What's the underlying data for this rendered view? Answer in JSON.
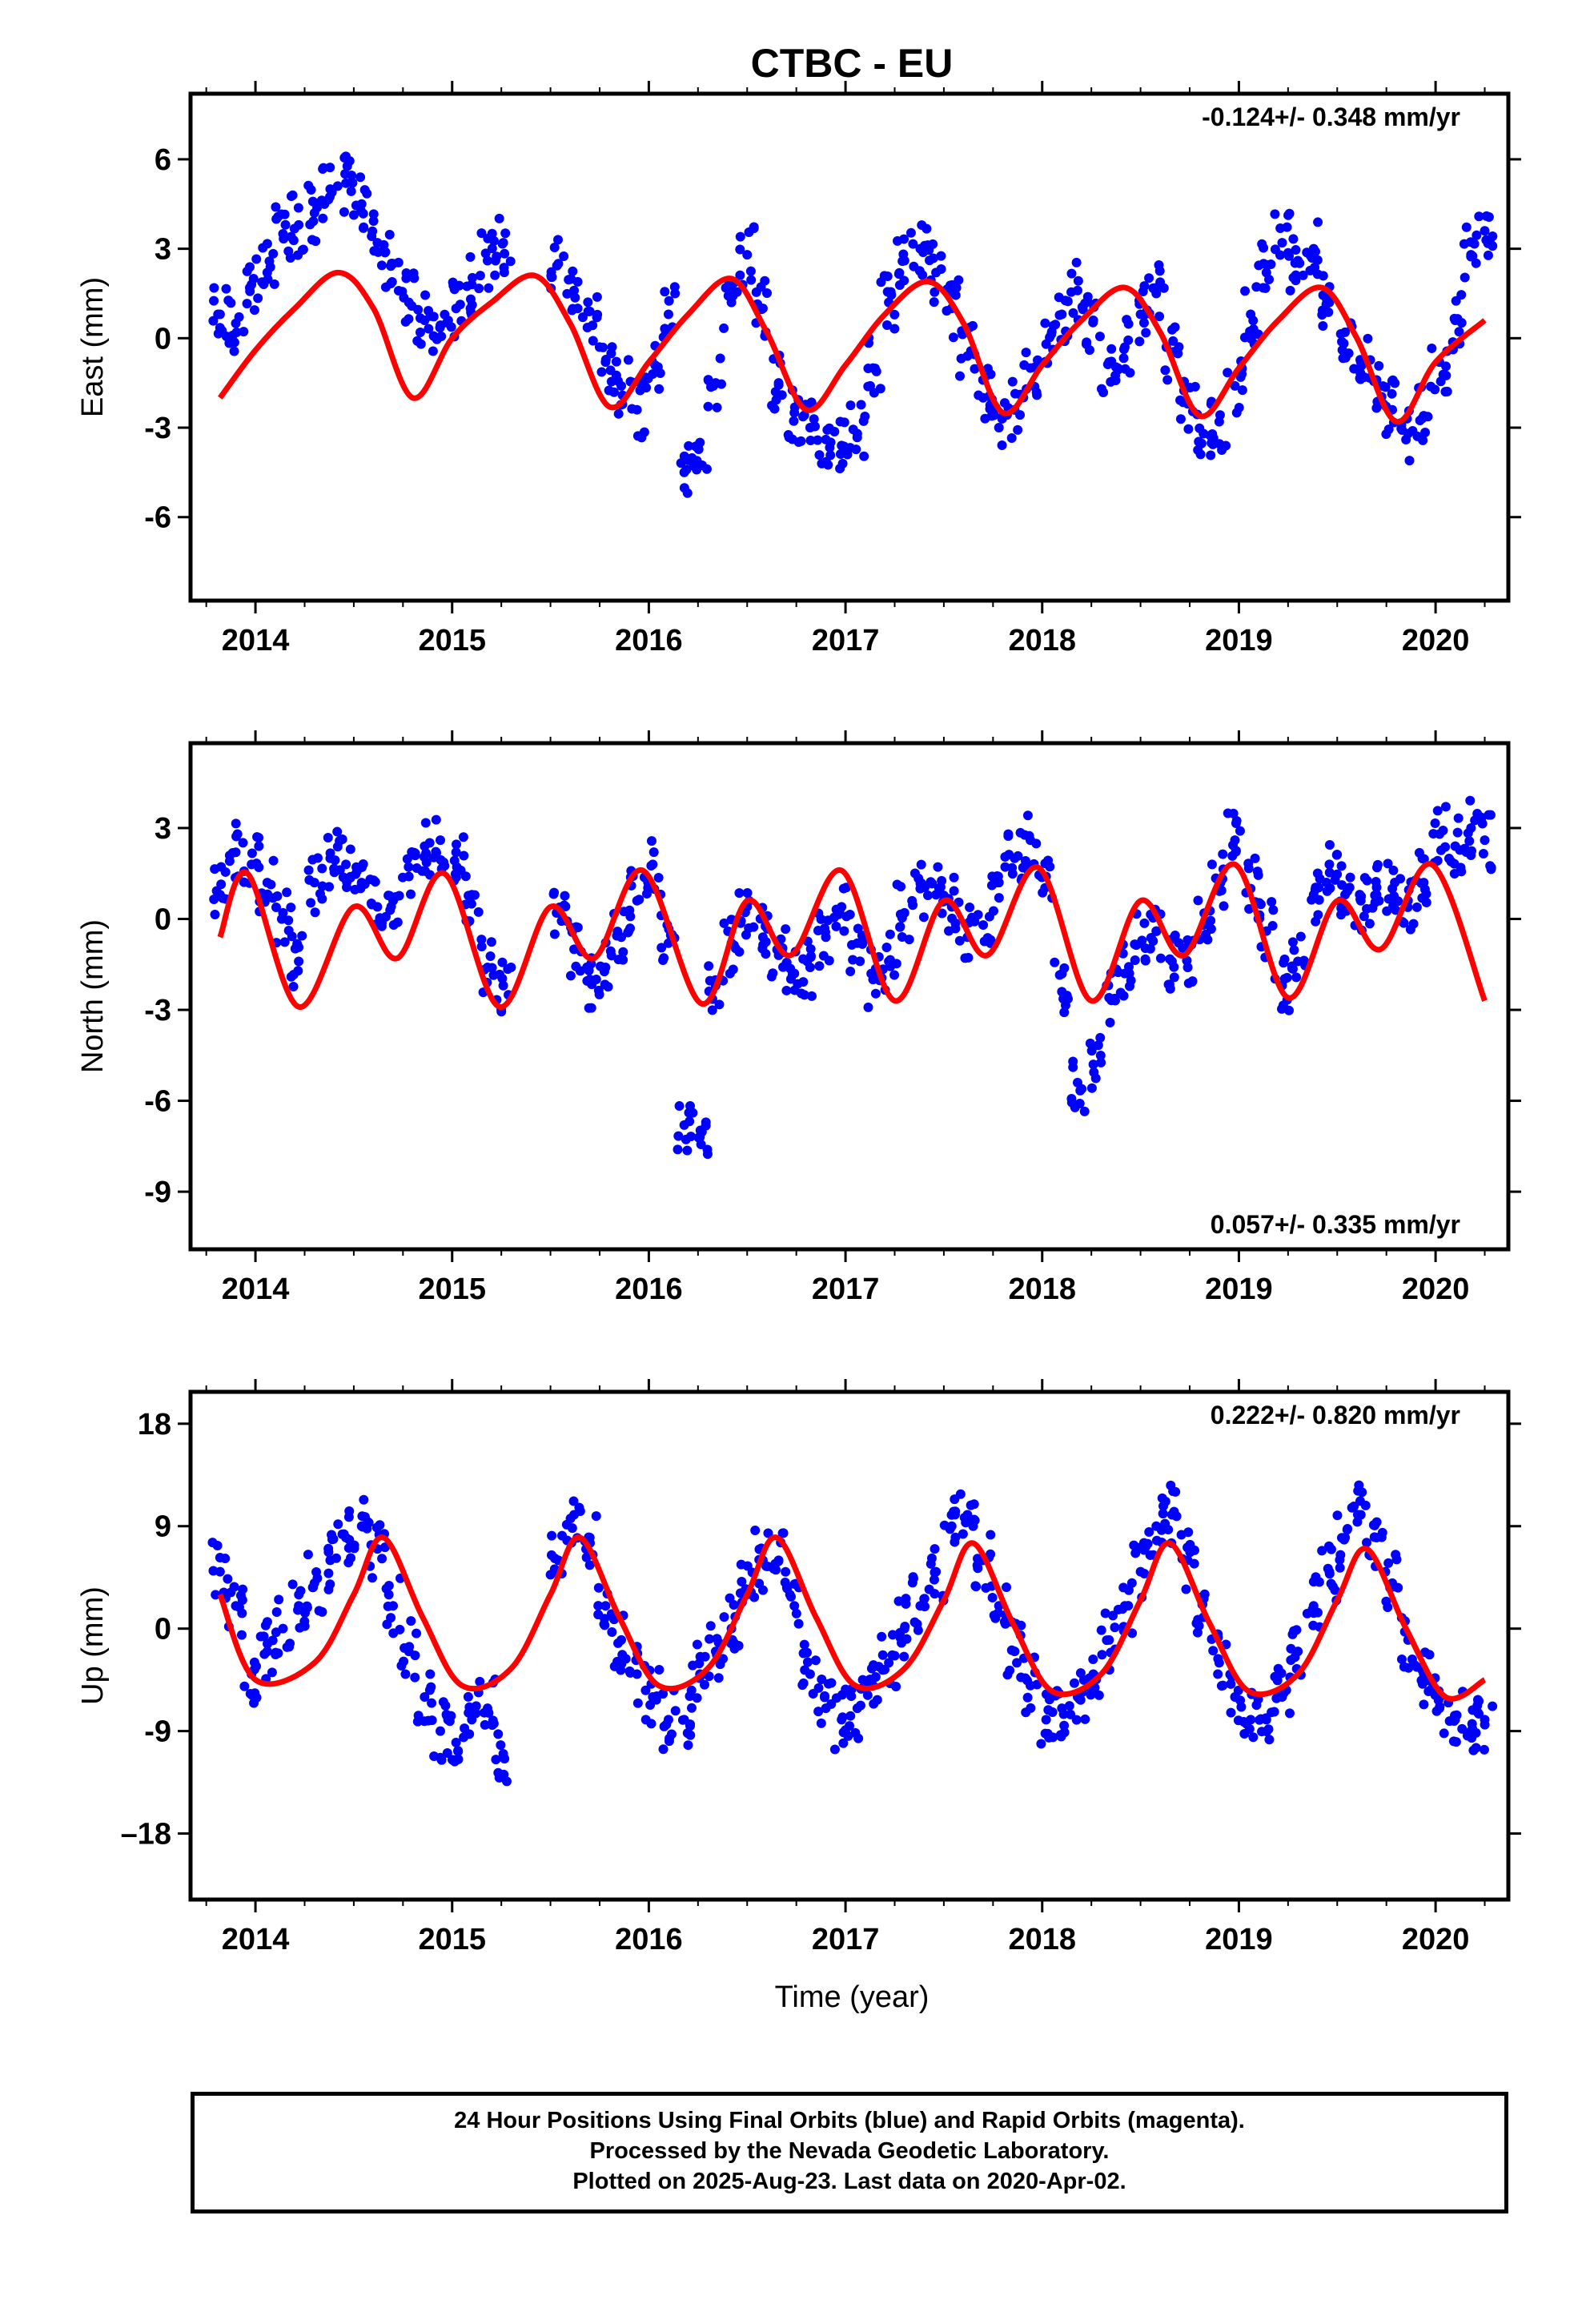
{
  "title": "CTBC - EU",
  "xlabel": "Time (year)",
  "colors": {
    "data": "#0000ff",
    "fit": "#ff0000",
    "frame": "#000000"
  },
  "caption": {
    "line1": "24 Hour Positions Using Final Orbits (blue) and Rapid Orbits (magenta).",
    "line2": "Processed by the Nevada Geodetic Laboratory.",
    "line3": "Plotted on 2025-Aug-23. Last data on 2020-Apr-02."
  },
  "chart_data": [
    {
      "type": "scatter",
      "title": "CTBC - EU",
      "ylabel": "East (mm)",
      "xlabel": "",
      "xlim": [
        2013.67,
        2020.37
      ],
      "ylim": [
        -8.8,
        8.2
      ],
      "xticks": [
        "2014",
        "2015",
        "2016",
        "2017",
        "2018",
        "2019",
        "2020"
      ],
      "yticks": [
        6,
        3,
        0,
        -3,
        -6
      ],
      "rate_label": "-0.124+/- 0.348 mm/yr",
      "rate_position": "top-right",
      "series": [
        {
          "kind": "points",
          "x": [
            2013.82,
            2013.9,
            2013.98,
            2014.06,
            2014.14,
            2014.22,
            2014.3,
            2014.38,
            2014.46,
            2014.54,
            2014.62,
            2014.7,
            2014.78,
            2014.86,
            2014.94,
            2015.02,
            2015.1,
            2015.18,
            2015.26,
            2015.54,
            2015.62,
            2015.7,
            2015.78,
            2015.86,
            2015.94,
            2016.02,
            2016.1,
            2016.18,
            2016.26,
            2016.34,
            2016.42,
            2016.5,
            2016.58,
            2016.66,
            2016.74,
            2016.82,
            2016.9,
            2016.98,
            2017.06,
            2017.14,
            2017.22,
            2017.3,
            2017.38,
            2017.46,
            2017.54,
            2017.62,
            2017.7,
            2017.78,
            2017.86,
            2017.94,
            2018.02,
            2018.1,
            2018.18,
            2018.26,
            2018.34,
            2018.42,
            2018.5,
            2018.58,
            2018.66,
            2018.74,
            2018.82,
            2018.9,
            2018.98,
            2019.06,
            2019.14,
            2019.22,
            2019.3,
            2019.38,
            2019.46,
            2019.54,
            2019.62,
            2019.7,
            2019.78,
            2019.86,
            2019.94,
            2020.02,
            2020.1,
            2020.18,
            2020.25
          ],
          "y": [
            0.8,
            0.5,
            1.8,
            2.2,
            3.5,
            3.8,
            4.2,
            5.0,
            5.2,
            4.5,
            3.2,
            2.5,
            1.2,
            0.6,
            0.4,
            1.0,
            1.8,
            2.6,
            3.2,
            2.5,
            1.6,
            0.9,
            -0.8,
            -1.6,
            -2.4,
            -1.2,
            0.8,
            -4.5,
            -3.5,
            -1.5,
            1.2,
            2.8,
            1.0,
            -1.5,
            -2.5,
            -3.0,
            -3.4,
            -3.6,
            -3.2,
            -1.0,
            1.2,
            2.6,
            3.0,
            2.2,
            1.0,
            -0.6,
            -2.0,
            -3.0,
            -2.4,
            -1.0,
            -0.2,
            0.8,
            1.6,
            0.6,
            -0.8,
            -0.3,
            0.8,
            1.5,
            -0.5,
            -2.2,
            -3.2,
            -2.8,
            -1.6,
            0.8,
            2.2,
            3.2,
            2.6,
            3.0,
            1.2,
            0.2,
            -0.8,
            -1.4,
            -2.4,
            -3.2,
            -2.6,
            -0.8,
            0.6,
            2.8,
            3.6
          ]
        },
        {
          "kind": "fit",
          "x": [
            2013.82,
            2014.0,
            2014.2,
            2014.42,
            2014.6,
            2014.8,
            2015.0,
            2015.2,
            2015.42,
            2015.6,
            2015.8,
            2016.0,
            2016.2,
            2016.42,
            2016.6,
            2016.8,
            2017.0,
            2017.2,
            2017.42,
            2017.6,
            2017.8,
            2018.0,
            2018.2,
            2018.42,
            2018.6,
            2018.8,
            2019.0,
            2019.2,
            2019.42,
            2019.6,
            2019.8,
            2020.0,
            2020.25
          ],
          "y": [
            -2.0,
            -0.4,
            1.0,
            2.2,
            1.0,
            -2.0,
            0.0,
            1.2,
            2.1,
            0.5,
            -2.3,
            -0.8,
            0.8,
            2.0,
            0.2,
            -2.4,
            -0.9,
            0.8,
            1.9,
            0.5,
            -2.5,
            -0.9,
            0.6,
            1.7,
            0.2,
            -2.6,
            -1.0,
            0.6,
            1.7,
            0.0,
            -2.8,
            -0.8,
            0.6
          ]
        }
      ]
    },
    {
      "type": "scatter",
      "ylabel": "North (mm)",
      "xlabel": "",
      "xlim": [
        2013.67,
        2020.37
      ],
      "ylim": [
        -10.9,
        5.8
      ],
      "xticks": [
        "2014",
        "2015",
        "2016",
        "2017",
        "2018",
        "2019",
        "2020"
      ],
      "yticks": [
        3,
        0,
        -3,
        -6,
        -9
      ],
      "rate_label": "0.057+/- 0.335 mm/yr",
      "rate_position": "bottom-right",
      "series": [
        {
          "kind": "points",
          "x": [
            2013.82,
            2013.9,
            2013.98,
            2014.06,
            2014.14,
            2014.22,
            2014.3,
            2014.38,
            2014.46,
            2014.54,
            2014.62,
            2014.7,
            2014.78,
            2014.86,
            2014.94,
            2015.02,
            2015.1,
            2015.18,
            2015.26,
            2015.54,
            2015.62,
            2015.7,
            2015.78,
            2015.86,
            2015.94,
            2016.02,
            2016.1,
            2016.18,
            2016.26,
            2016.34,
            2016.42,
            2016.5,
            2016.58,
            2016.66,
            2016.74,
            2016.82,
            2016.9,
            2016.98,
            2017.06,
            2017.14,
            2017.22,
            2017.3,
            2017.38,
            2017.46,
            2017.54,
            2017.62,
            2017.7,
            2017.78,
            2017.86,
            2017.94,
            2018.02,
            2018.1,
            2018.18,
            2018.26,
            2018.34,
            2018.42,
            2018.5,
            2018.58,
            2018.66,
            2018.74,
            2018.82,
            2018.9,
            2018.98,
            2019.06,
            2019.14,
            2019.22,
            2019.3,
            2019.38,
            2019.46,
            2019.54,
            2019.62,
            2019.7,
            2019.78,
            2019.86,
            2019.94,
            2020.02,
            2020.1,
            2020.18,
            2020.25
          ],
          "y": [
            0.8,
            2.2,
            1.8,
            1.2,
            0.2,
            -1.4,
            1.2,
            2.0,
            1.8,
            1.2,
            0.4,
            0.6,
            1.4,
            2.4,
            2.6,
            2.2,
            0.8,
            -1.6,
            -2.2,
            0.2,
            -1.0,
            -2.0,
            -1.6,
            -0.6,
            0.6,
            1.8,
            -0.8,
            -6.8,
            -7.2,
            -2.2,
            -0.8,
            0.4,
            -0.6,
            -1.2,
            -1.8,
            -1.6,
            -0.6,
            0.4,
            -0.8,
            -2.0,
            -1.4,
            0.2,
            1.0,
            0.8,
            0.4,
            -0.6,
            -0.2,
            1.2,
            2.0,
            2.6,
            1.4,
            -2.4,
            -5.4,
            -4.8,
            -2.6,
            -1.8,
            -0.8,
            -0.4,
            -1.4,
            -1.6,
            -0.2,
            1.2,
            2.6,
            1.0,
            -0.4,
            -2.2,
            -1.4,
            0.8,
            1.8,
            0.8,
            0.6,
            0.8,
            1.0,
            0.6,
            1.2,
            2.8,
            2.4,
            3.0,
            2.6
          ]
        },
        {
          "kind": "fit",
          "x": [
            2013.82,
            2013.96,
            2014.22,
            2014.5,
            2014.72,
            2014.96,
            2015.24,
            2015.5,
            2015.72,
            2015.97,
            2016.27,
            2016.5,
            2016.72,
            2016.98,
            2017.25,
            2017.5,
            2017.72,
            2017.98,
            2018.25,
            2018.5,
            2018.72,
            2018.98,
            2019.25,
            2019.5,
            2019.72,
            2019.98,
            2020.25
          ],
          "y": [
            -0.6,
            1.5,
            -2.9,
            0.4,
            -1.3,
            1.5,
            -2.9,
            0.4,
            -1.3,
            1.6,
            -2.8,
            0.6,
            -1.2,
            1.6,
            -2.7,
            0.6,
            -1.2,
            1.7,
            -2.7,
            0.6,
            -1.2,
            1.8,
            -2.6,
            0.6,
            -1.0,
            1.8,
            -2.7
          ]
        }
      ]
    },
    {
      "type": "scatter",
      "ylabel": "Up (mm)",
      "xlabel": "Time (year)",
      "xlim": [
        2013.67,
        2020.37
      ],
      "ylim": [
        -23.8,
        20.8
      ],
      "xticks": [
        "2014",
        "2015",
        "2016",
        "2017",
        "2018",
        "2019",
        "2020"
      ],
      "yticks": [
        18,
        9,
        0,
        -9,
        -18
      ],
      "rate_label": "0.222+/- 0.820 mm/yr",
      "rate_position": "top-right",
      "series": [
        {
          "kind": "points",
          "x": [
            2013.82,
            2013.9,
            2013.98,
            2014.06,
            2014.14,
            2014.22,
            2014.3,
            2014.38,
            2014.46,
            2014.54,
            2014.62,
            2014.7,
            2014.78,
            2014.86,
            2014.94,
            2015.02,
            2015.1,
            2015.18,
            2015.26,
            2015.54,
            2015.62,
            2015.7,
            2015.78,
            2015.86,
            2015.94,
            2016.02,
            2016.1,
            2016.18,
            2016.26,
            2016.34,
            2016.42,
            2016.5,
            2016.58,
            2016.66,
            2016.74,
            2016.82,
            2016.9,
            2016.98,
            2017.06,
            2017.14,
            2017.22,
            2017.3,
            2017.38,
            2017.46,
            2017.54,
            2017.62,
            2017.7,
            2017.78,
            2017.86,
            2017.94,
            2018.02,
            2018.1,
            2018.18,
            2018.26,
            2018.34,
            2018.42,
            2018.5,
            2018.58,
            2018.66,
            2018.74,
            2018.82,
            2018.9,
            2018.98,
            2019.06,
            2019.14,
            2019.22,
            2019.3,
            2019.38,
            2019.46,
            2019.54,
            2019.62,
            2019.7,
            2019.78,
            2019.86,
            2019.94,
            2020.02,
            2020.1,
            2020.18,
            2020.25
          ],
          "y": [
            5.0,
            2.0,
            -4.0,
            -2.0,
            0.0,
            2.0,
            4.0,
            6.0,
            8.0,
            9.0,
            7.0,
            2.0,
            -2.0,
            -6.0,
            -9.0,
            -10.0,
            -8.0,
            -7.0,
            -11.0,
            6.0,
            10.0,
            8.0,
            2.0,
            -1.0,
            -4.0,
            -6.0,
            -8.0,
            -8.0,
            -4.0,
            -2.0,
            0.0,
            3.0,
            6.0,
            6.0,
            2.0,
            -4.0,
            -7.0,
            -8.0,
            -7.0,
            -5.0,
            -3.0,
            0.0,
            2.0,
            5.0,
            9.0,
            10.0,
            6.0,
            2.0,
            -2.0,
            -5.0,
            -8.0,
            -7.0,
            -6.0,
            -4.0,
            -1.0,
            2.0,
            5.0,
            9.0,
            10.0,
            6.0,
            1.0,
            -3.0,
            -6.0,
            -8.0,
            -8.0,
            -6.0,
            -2.0,
            2.0,
            5.0,
            8.0,
            10.0,
            8.0,
            4.0,
            -1.0,
            -4.0,
            -7.0,
            -8.0,
            -9.0,
            -8.0
          ]
        },
        {
          "kind": "fit",
          "x": [
            2013.82,
            2014.0,
            2014.3,
            2014.5,
            2014.65,
            2014.85,
            2015.05,
            2015.3,
            2015.5,
            2015.65,
            2015.85,
            2016.05,
            2016.3,
            2016.5,
            2016.65,
            2016.85,
            2017.05,
            2017.3,
            2017.5,
            2017.65,
            2017.85,
            2018.05,
            2018.3,
            2018.5,
            2018.65,
            2018.85,
            2019.05,
            2019.3,
            2019.5,
            2019.65,
            2019.85,
            2020.05,
            2020.25
          ],
          "y": [
            3.0,
            -4.5,
            -3.0,
            3.0,
            8.0,
            1.0,
            -5.0,
            -3.5,
            3.0,
            8.0,
            1.0,
            -5.0,
            -3.5,
            3.0,
            8.0,
            1.0,
            -5.0,
            -3.5,
            2.5,
            7.5,
            0.5,
            -5.5,
            -4.0,
            2.5,
            7.5,
            0.5,
            -5.5,
            -4.0,
            2.5,
            7.0,
            0.0,
            -6.0,
            -4.5
          ]
        }
      ]
    }
  ]
}
